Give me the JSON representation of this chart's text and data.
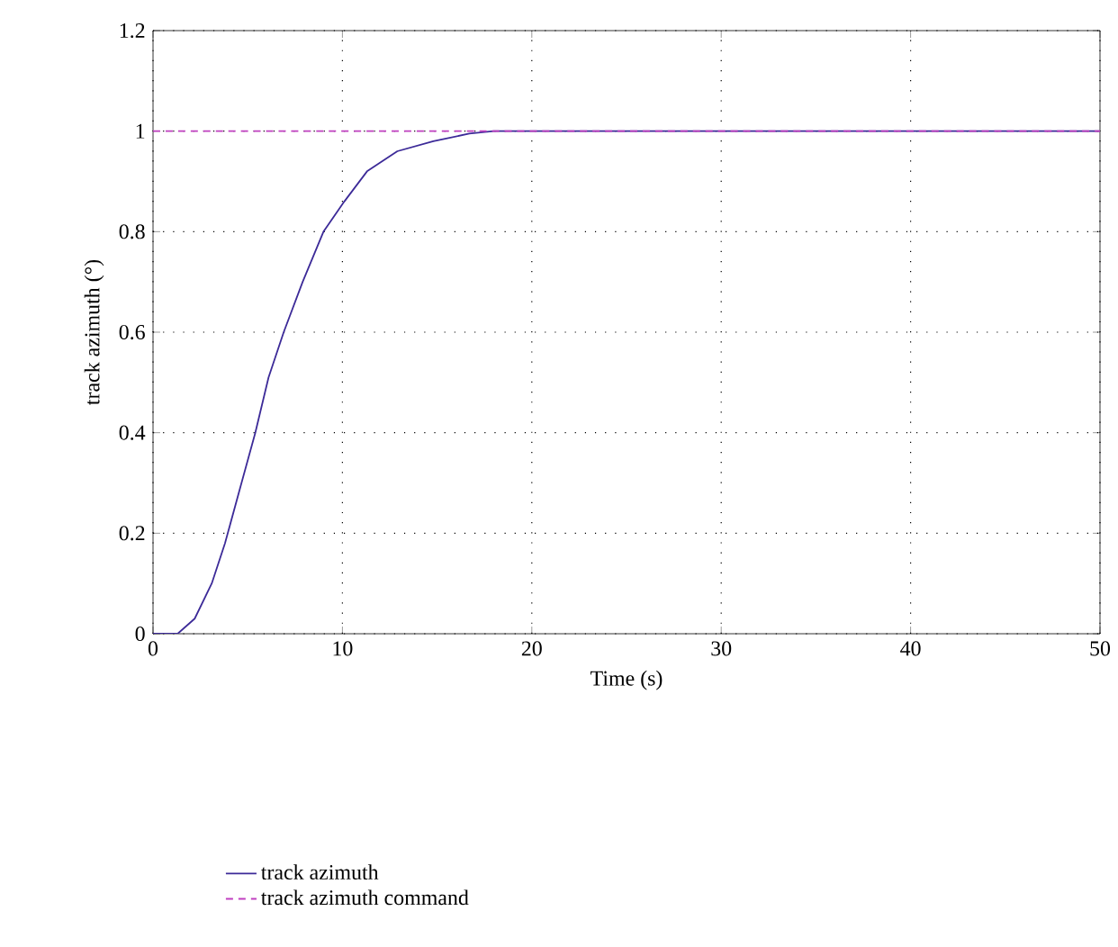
{
  "chart_data": {
    "type": "line",
    "xlabel": "Time (s)",
    "ylabel": "track azimuth (°)",
    "xlim": [
      0,
      50
    ],
    "ylim": [
      0,
      1.2
    ],
    "xticks": [
      0,
      10,
      20,
      30,
      40,
      50
    ],
    "yticks": [
      0,
      0.2,
      0.4,
      0.6,
      0.8,
      1,
      1.2
    ],
    "grid": true,
    "legend": "bottom",
    "series": [
      {
        "name": "track azimuth",
        "color": "#3c2a98",
        "line_style": "solid",
        "x": [
          0,
          1.3,
          2.2,
          3.1,
          3.8,
          4.6,
          5.4,
          6.1,
          6.9,
          7.9,
          9,
          10.1,
          11.3,
          12.9,
          14.8,
          16.7,
          18,
          20,
          50
        ],
        "values": [
          0,
          0,
          0.03,
          0.1,
          0.18,
          0.29,
          0.4,
          0.51,
          0.6,
          0.7,
          0.8,
          0.86,
          0.92,
          0.96,
          0.98,
          0.995,
          1,
          1,
          1
        ]
      },
      {
        "name": "track azimuth command",
        "color": "#c040c0",
        "line_style": "dashed",
        "x": [
          0,
          50
        ],
        "values": [
          1,
          1
        ]
      }
    ]
  }
}
